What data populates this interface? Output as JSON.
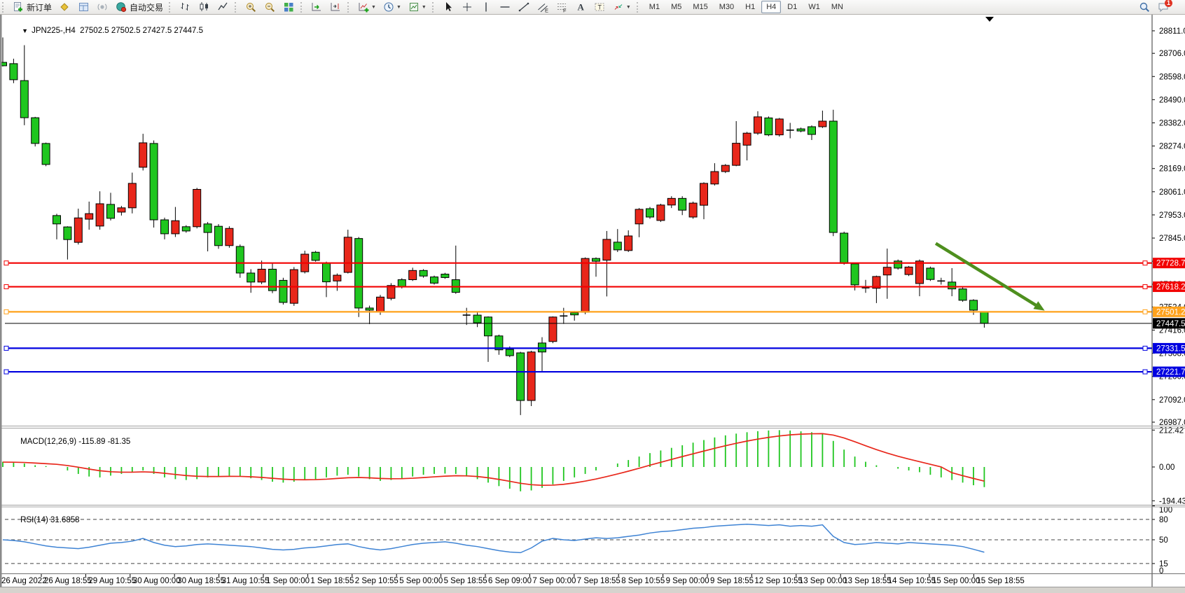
{
  "toolbar": {
    "groups": [
      {
        "name": "trade-group",
        "items": [
          {
            "name": "new-order-button",
            "icon": "new-order",
            "label": "新订单"
          },
          {
            "name": "market-watch-button",
            "icon": "market-watch"
          },
          {
            "name": "navigator-button",
            "icon": "navigator"
          },
          {
            "name": "signals-button",
            "icon": "signals"
          },
          {
            "name": "autotrading-button",
            "icon": "autotrading",
            "label": "自动交易"
          }
        ]
      },
      {
        "name": "chart-type-group",
        "items": [
          {
            "name": "bar-chart-button",
            "icon": "bar-chart"
          },
          {
            "name": "candlestick-chart-button",
            "icon": "candlestick"
          },
          {
            "name": "line-chart-button",
            "icon": "line-chart"
          }
        ]
      },
      {
        "name": "zoom-group",
        "items": [
          {
            "name": "zoom-in-button",
            "icon": "zoom-in"
          },
          {
            "name": "zoom-out-button",
            "icon": "zoom-out"
          },
          {
            "name": "tile-windows-button",
            "icon": "tile-windows"
          }
        ]
      },
      {
        "name": "scroll-group",
        "items": [
          {
            "name": "auto-scroll-button",
            "icon": "auto-scroll"
          },
          {
            "name": "chart-shift-button",
            "icon": "chart-shift"
          }
        ]
      },
      {
        "name": "insert-group",
        "items": [
          {
            "name": "indicators-button",
            "icon": "indicators",
            "dropdown": true
          },
          {
            "name": "periods-button",
            "icon": "periods",
            "dropdown": true
          },
          {
            "name": "templates-button",
            "icon": "templates",
            "dropdown": true
          }
        ]
      },
      {
        "name": "objects-group",
        "items": [
          {
            "name": "cursor-button",
            "icon": "cursor"
          },
          {
            "name": "crosshair-button",
            "icon": "crosshair"
          },
          {
            "name": "vertical-line-button",
            "icon": "vertical-line"
          },
          {
            "name": "horizontal-line-button",
            "icon": "horizontal-line"
          },
          {
            "name": "trendline-button",
            "icon": "trendline"
          },
          {
            "name": "equidistant-channel-button",
            "icon": "channel"
          },
          {
            "name": "fibonacci-button",
            "icon": "fibonacci"
          },
          {
            "name": "text-button",
            "icon": "text"
          },
          {
            "name": "text-label-button",
            "icon": "text-label"
          },
          {
            "name": "arrows-button",
            "icon": "arrows",
            "dropdown": true
          }
        ]
      }
    ],
    "timeframes": {
      "options": [
        "M1",
        "M5",
        "M15",
        "M30",
        "H1",
        "H4",
        "D1",
        "W1",
        "MN"
      ],
      "active": "H4"
    },
    "right_items": [
      {
        "name": "search-button",
        "icon": "search"
      },
      {
        "name": "chat-button",
        "icon": "chat",
        "badge": "1"
      }
    ]
  },
  "chart": {
    "title_arrow": "▼",
    "title": "JPN225-,H4",
    "ohlc": "27502.5 27502.5 27427.5 27447.5"
  },
  "chart_data": {
    "type": "candlestick",
    "symbol": "JPN225-",
    "period": "H4",
    "open": "27502.5",
    "high": "27502.5",
    "low": "27427.5",
    "close": "27447.5",
    "bull_color": "#e8271b",
    "bear_color": "#1fc61f",
    "outline_color": "#000000",
    "price_axis": {
      "ticks": [
        "28811.0",
        "28706.0",
        "28598.0",
        "28490.0",
        "28382.0",
        "28274.0",
        "28169.0",
        "28061.0",
        "27953.0",
        "27845.0",
        "27737.0",
        "27630.0",
        "27524.0",
        "27416.0",
        "27308.0",
        "27200.0",
        "27092.0",
        "26987.0"
      ]
    },
    "x_labels": [
      "26 Aug 2022",
      "26 Aug 18:55",
      "29 Aug 10:55",
      "30 Aug 00:00",
      "30 Aug 18:55",
      "31 Aug 10:55",
      "1 Sep 00:00",
      "1 Sep 18:55",
      "2 Sep 10:55",
      "5 Sep 00:00",
      "5 Sep 18:55",
      "6 Sep 09:00",
      "7 Sep 00:00",
      "7 Sep 18:55",
      "8 Sep 10:55",
      "9 Sep 00:00",
      "9 Sep 18:55",
      "12 Sep 10:55",
      "13 Sep 00:00",
      "13 Sep 18:55",
      "14 Sep 10:55",
      "15 Sep 00:00",
      "15 Sep 18:55"
    ],
    "bars_per_label": 4,
    "candles": [
      [
        28664,
        28780,
        28645,
        28648
      ],
      [
        28658,
        28681,
        28567,
        28583
      ],
      [
        28579,
        28744,
        28371,
        28406
      ],
      [
        28406,
        28410,
        28272,
        28286
      ],
      [
        28286,
        28290,
        28180,
        28188
      ],
      [
        27950,
        27958,
        27839,
        27911
      ],
      [
        27897,
        27900,
        27745,
        27838
      ],
      [
        27825,
        27982,
        27815,
        27939
      ],
      [
        27933,
        28015,
        27884,
        27959
      ],
      [
        27901,
        28063,
        27884,
        28005
      ],
      [
        28002,
        28056,
        27927,
        27937
      ],
      [
        27966,
        27995,
        27950,
        27986
      ],
      [
        27986,
        28150,
        27960,
        28100
      ],
      [
        28175,
        28331,
        28160,
        28289
      ],
      [
        28286,
        28300,
        27894,
        27930
      ],
      [
        27930,
        27940,
        27839,
        27865
      ],
      [
        27865,
        27990,
        27850,
        27926
      ],
      [
        27898,
        27905,
        27870,
        27878
      ],
      [
        27898,
        28079,
        27890,
        28072
      ],
      [
        27911,
        27920,
        27783,
        27871
      ],
      [
        27900,
        27910,
        27795,
        27810
      ],
      [
        27810,
        27900,
        27800,
        27890
      ],
      [
        27806,
        27815,
        27660,
        27682
      ],
      [
        27682,
        27700,
        27590,
        27640
      ],
      [
        27640,
        27740,
        27630,
        27700
      ],
      [
        27700,
        27730,
        27588,
        27600
      ],
      [
        27648,
        27660,
        27535,
        27545
      ],
      [
        27541,
        27710,
        27529,
        27698
      ],
      [
        27688,
        27786,
        27680,
        27770
      ],
      [
        27779,
        27785,
        27735,
        27741
      ],
      [
        27728,
        27735,
        27570,
        27641
      ],
      [
        27645,
        27680,
        27599,
        27672
      ],
      [
        27685,
        27884,
        27680,
        27849
      ],
      [
        27843,
        27850,
        27477,
        27519
      ],
      [
        27519,
        27530,
        27444,
        27509
      ],
      [
        27500,
        27580,
        27487,
        27570
      ],
      [
        27564,
        27635,
        27555,
        27624
      ],
      [
        27651,
        27658,
        27610,
        27618
      ],
      [
        27651,
        27707,
        27645,
        27694
      ],
      [
        27694,
        27700,
        27660,
        27668
      ],
      [
        27664,
        27670,
        27628,
        27635
      ],
      [
        27677,
        27683,
        27655,
        27661
      ],
      [
        27651,
        27810,
        27585,
        27592
      ],
      [
        27484,
        27520,
        27440,
        27486
      ],
      [
        27486,
        27500,
        27430,
        27450
      ],
      [
        27477,
        27480,
        27268,
        27389
      ],
      [
        27389,
        27395,
        27301,
        27324
      ],
      [
        27326,
        27340,
        27290,
        27297
      ],
      [
        27310,
        27315,
        27020,
        27088
      ],
      [
        27088,
        27320,
        27062,
        27314
      ],
      [
        27356,
        27383,
        27219,
        27314
      ],
      [
        27363,
        27480,
        27355,
        27477
      ],
      [
        27484,
        27520,
        27445,
        27482
      ],
      [
        27497,
        27505,
        27460,
        27487
      ],
      [
        27499,
        27755,
        27490,
        27750
      ],
      [
        27750,
        27755,
        27665,
        27737
      ],
      [
        27742,
        27878,
        27573,
        27839
      ],
      [
        27826,
        27887,
        27780,
        27790
      ],
      [
        27787,
        27881,
        27780,
        27855
      ],
      [
        27911,
        27985,
        27849,
        27979
      ],
      [
        27982,
        27990,
        27935,
        27943
      ],
      [
        27927,
        28005,
        27920,
        27999
      ],
      [
        27999,
        28040,
        27985,
        28030
      ],
      [
        28030,
        28040,
        27952,
        27975
      ],
      [
        27943,
        28015,
        27935,
        28008
      ],
      [
        27998,
        28105,
        27933,
        28100
      ],
      [
        28097,
        28194,
        28090,
        28155
      ],
      [
        28155,
        28190,
        28148,
        28184
      ],
      [
        28184,
        28390,
        28180,
        28287
      ],
      [
        28278,
        28340,
        28207,
        28334
      ],
      [
        28334,
        28436,
        28326,
        28410
      ],
      [
        28405,
        28412,
        28320,
        28326
      ],
      [
        28326,
        28405,
        28318,
        28400
      ],
      [
        28344,
        28382,
        28310,
        28348
      ],
      [
        28354,
        28360,
        28338,
        28344
      ],
      [
        28364,
        28370,
        28302,
        28328
      ],
      [
        28364,
        28439,
        28358,
        28390
      ],
      [
        28390,
        28443,
        27854,
        27871
      ],
      [
        27868,
        27875,
        27721,
        27727
      ],
      [
        27725,
        27730,
        27601,
        27627
      ],
      [
        27611,
        27650,
        27590,
        27613
      ],
      [
        27611,
        27670,
        27542,
        27666
      ],
      [
        27673,
        27796,
        27562,
        27709
      ],
      [
        27738,
        27745,
        27698,
        27705
      ],
      [
        27675,
        27715,
        27668,
        27710
      ],
      [
        27633,
        27745,
        27574,
        27738
      ],
      [
        27705,
        27712,
        27645,
        27652
      ],
      [
        27643,
        27660,
        27628,
        27645
      ],
      [
        27640,
        27705,
        27574,
        27608
      ],
      [
        27608,
        27615,
        27548,
        27555
      ],
      [
        27555,
        27560,
        27487,
        27509
      ],
      [
        27502.5,
        27502.5,
        27427.5,
        27447.5
      ]
    ],
    "horizontal_lines": [
      {
        "price": 27728.7,
        "label": "27728.7",
        "color": "#f20000"
      },
      {
        "price": 27618.2,
        "label": "27618.2",
        "color": "#f20000"
      },
      {
        "price": 27501.2,
        "label": "27501.2",
        "color": "#ffa21c"
      },
      {
        "price": 27331.5,
        "label": "27331.5",
        "color": "#0000e0"
      },
      {
        "price": 27221.7,
        "label": "27221.7",
        "color": "#0000e0"
      }
    ],
    "current_price_line": {
      "price": 27447.5,
      "label": "27447.5",
      "color": "#000000"
    },
    "trend_arrow": {
      "from_bar": 86.5,
      "from_price": 27820,
      "to_bar": 96.6,
      "to_price": 27507,
      "color": "#4e8f1e"
    },
    "indicators": [
      {
        "name": "MACD",
        "params": "(12,26,9)",
        "values_label": [
          "-115.89",
          "-81.35"
        ],
        "axis_labels": [
          "212.42",
          "0.00",
          "-194.43"
        ],
        "axis_values": [
          212.42,
          0,
          -194.43
        ],
        "colors": {
          "histogram": "#1fc61f",
          "signal": "#e8271b"
        },
        "histogram": [
          30,
          25,
          20,
          10,
          5,
          0,
          -20,
          -40,
          -55,
          -60,
          -50,
          -40,
          -30,
          -20,
          -40,
          -60,
          -70,
          -75,
          -70,
          -60,
          -55,
          -50,
          -55,
          -65,
          -75,
          -85,
          -90,
          -85,
          -75,
          -70,
          -60,
          -50,
          -45,
          -55,
          -70,
          -80,
          -75,
          -65,
          -55,
          -45,
          -40,
          -38,
          -40,
          -55,
          -70,
          -90,
          -110,
          -125,
          -140,
          -135,
          -120,
          -100,
          -80,
          -60,
          -40,
          -20,
          0,
          20,
          40,
          60,
          80,
          95,
          110,
          125,
          140,
          155,
          170,
          182,
          192,
          200,
          206,
          210,
          212,
          210,
          205,
          200,
          195,
          150,
          100,
          60,
          30,
          10,
          0,
          -10,
          -20,
          -30,
          -45,
          -60,
          -75,
          -90,
          -105,
          -115.89
        ],
        "signal": [
          28,
          27.4,
          25.9,
          22.7,
          19.2,
          15.4,
          8.3,
          -1.4,
          -12.1,
          -21.7,
          -27.4,
          -29.9,
          -29.9,
          -27.9,
          -30.3,
          -36.2,
          -43,
          -49.4,
          -53.5,
          -54.8,
          -54.8,
          -53.8,
          -54.1,
          -56.3,
          -60,
          -65,
          -70,
          -73,
          -73.4,
          -72.7,
          -70.2,
          -66.1,
          -61.9,
          -60.5,
          -62.4,
          -65.9,
          -67.7,
          -67.2,
          -64.8,
          -60.8,
          -56.6,
          -52.9,
          -50.3,
          -51.2,
          -55,
          -62,
          -71.6,
          -82.3,
          -93.8,
          -102,
          -105.6,
          -104.5,
          -99.6,
          -91.7,
          -81.4,
          -69.1,
          -55.3,
          -40.2,
          -24.2,
          -7.4,
          10.1,
          27.1,
          43.7,
          59.9,
          75.9,
          91.7,
          107.4,
          122.3,
          136.2,
          149,
          160.4,
          170.3,
          178.6,
          184.9,
          188.9,
          191.1,
          191.9,
          183.5,
          166.8,
          145.4,
          122.3,
          99.9,
          79.9,
          61.9,
          45.5,
          30.4,
          15.3,
          0.3,
          -33,
          -50,
          -66,
          -81.35
        ]
      },
      {
        "name": "RSI",
        "params": "(14)",
        "value_label": "31.6858",
        "axis_labels": [
          "100",
          "80",
          "50",
          "15",
          "0"
        ],
        "axis_values": [
          100,
          80,
          50,
          15,
          0
        ],
        "levels": [
          80,
          50,
          15
        ],
        "color": "#3e83d4",
        "series": [
          50,
          49,
          47,
          44,
          41,
          39,
          38,
          37,
          39,
          42,
          45,
          46,
          48,
          52,
          46,
          42,
          40,
          41,
          43,
          44,
          43,
          42,
          41,
          40,
          38,
          36,
          35,
          36,
          38,
          39,
          41,
          43,
          44,
          40,
          37,
          35,
          37,
          40,
          43,
          45,
          46,
          47,
          45,
          42,
          40,
          37,
          34,
          32,
          31,
          38,
          48,
          52,
          50,
          49,
          51,
          53,
          52,
          53,
          55,
          57,
          60,
          62,
          63,
          65,
          67,
          68,
          70,
          71,
          72,
          73,
          72,
          71,
          72,
          70,
          71,
          70,
          72,
          55,
          46,
          43,
          44,
          46,
          45,
          44,
          46,
          45,
          44,
          43,
          42,
          40,
          36,
          31.7
        ]
      }
    ]
  }
}
